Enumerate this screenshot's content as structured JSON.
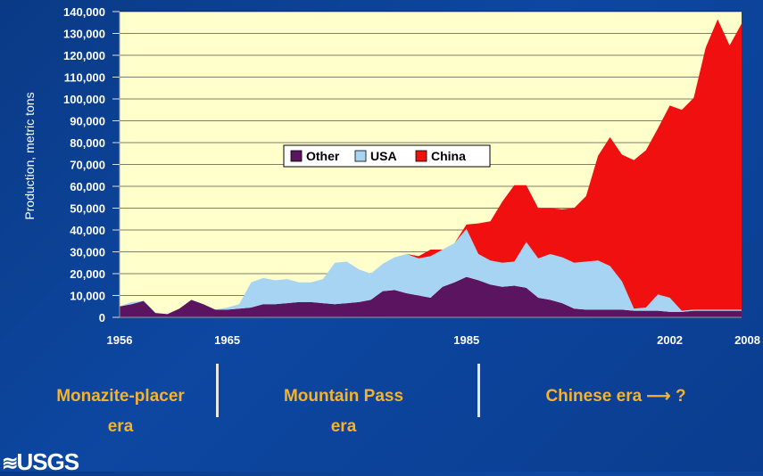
{
  "chart_data": {
    "type": "area",
    "stacked": true,
    "ylabel": "Production, metric tons",
    "xlabel": "",
    "title": "",
    "ylim": [
      0,
      140000
    ],
    "xlim": [
      1956,
      2008
    ],
    "y_ticks": [
      "0",
      "10,000",
      "20,000",
      "30,000",
      "40,000",
      "50,000",
      "60,000",
      "70,000",
      "80,000",
      "90,000",
      "100,000",
      "110,000",
      "120,000",
      "130,000",
      "140,000"
    ],
    "x_ticks": [
      "1956",
      "1965",
      "1985",
      "2002",
      "2008"
    ],
    "x_tick_values": [
      1956,
      1965,
      1985,
      2002,
      2008
    ],
    "grid": true,
    "legend": {
      "position": "center",
      "entries": [
        "Other",
        "USA",
        "China"
      ]
    },
    "colors": {
      "Other": "#5a1460",
      "USA": "#a8d4f4",
      "China": "#f01010",
      "plot_bg": "#ffffcc"
    },
    "x": [
      1956,
      1957,
      1958,
      1959,
      1960,
      1961,
      1962,
      1963,
      1964,
      1965,
      1966,
      1967,
      1968,
      1969,
      1970,
      1971,
      1972,
      1973,
      1974,
      1975,
      1976,
      1977,
      1978,
      1979,
      1980,
      1981,
      1982,
      1983,
      1984,
      1985,
      1986,
      1987,
      1988,
      1989,
      1990,
      1991,
      1992,
      1993,
      1994,
      1995,
      1996,
      1997,
      1998,
      1999,
      2000,
      2001,
      2002,
      2003,
      2004,
      2005,
      2006,
      2007,
      2008
    ],
    "series": [
      {
        "name": "Other",
        "values": [
          5000,
          6000,
          7500,
          2000,
          1500,
          4000,
          8000,
          6000,
          3500,
          3500,
          4000,
          4500,
          6000,
          6000,
          6500,
          7000,
          7000,
          6500,
          6000,
          6500,
          7000,
          8000,
          12000,
          12500,
          11000,
          10000,
          9000,
          14000,
          16000,
          18500,
          17000,
          15000,
          14000,
          14500,
          13500,
          9000,
          8000,
          6500,
          4000,
          3500,
          3500,
          3500,
          3500,
          3000,
          3000,
          3000,
          2500,
          2500,
          3000,
          3000,
          3000,
          3000,
          3000
        ]
      },
      {
        "name": "USA",
        "values": [
          0,
          1000,
          0,
          0,
          0,
          0,
          0,
          0,
          0,
          1000,
          2000,
          11500,
          12000,
          11000,
          11000,
          9000,
          9000,
          11000,
          19000,
          19000,
          15000,
          12000,
          12500,
          15000,
          18000,
          17000,
          19000,
          17000,
          18000,
          22000,
          12000,
          11000,
          11000,
          11000,
          21000,
          18000,
          21000,
          21000,
          21000,
          22000,
          22500,
          20000,
          13000,
          1000,
          1500,
          7500,
          6500,
          500,
          500,
          500,
          500,
          500,
          500
        ]
      },
      {
        "name": "China",
        "values": [
          0,
          0,
          0,
          0,
          0,
          0,
          0,
          0,
          0,
          0,
          0,
          0,
          0,
          0,
          0,
          0,
          0,
          0,
          0,
          0,
          0,
          0,
          0,
          0,
          0,
          1000,
          3000,
          0,
          0,
          2000,
          14000,
          18000,
          28000,
          35000,
          26000,
          23000,
          21000,
          22000,
          25000,
          30000,
          48000,
          59000,
          58000,
          68000,
          72000,
          76000,
          88000,
          92000,
          97000,
          120000,
          133000,
          121000,
          131000
        ]
      }
    ]
  },
  "eras": [
    {
      "line1": "Monazite-placer",
      "line2": "era"
    },
    {
      "line1": "Mountain Pass",
      "line2": "era"
    },
    {
      "line1": "Chinese era ⟶  ?",
      "line2": ""
    }
  ],
  "logo": {
    "text": "USGS",
    "icon": "usgs-wave-icon"
  }
}
